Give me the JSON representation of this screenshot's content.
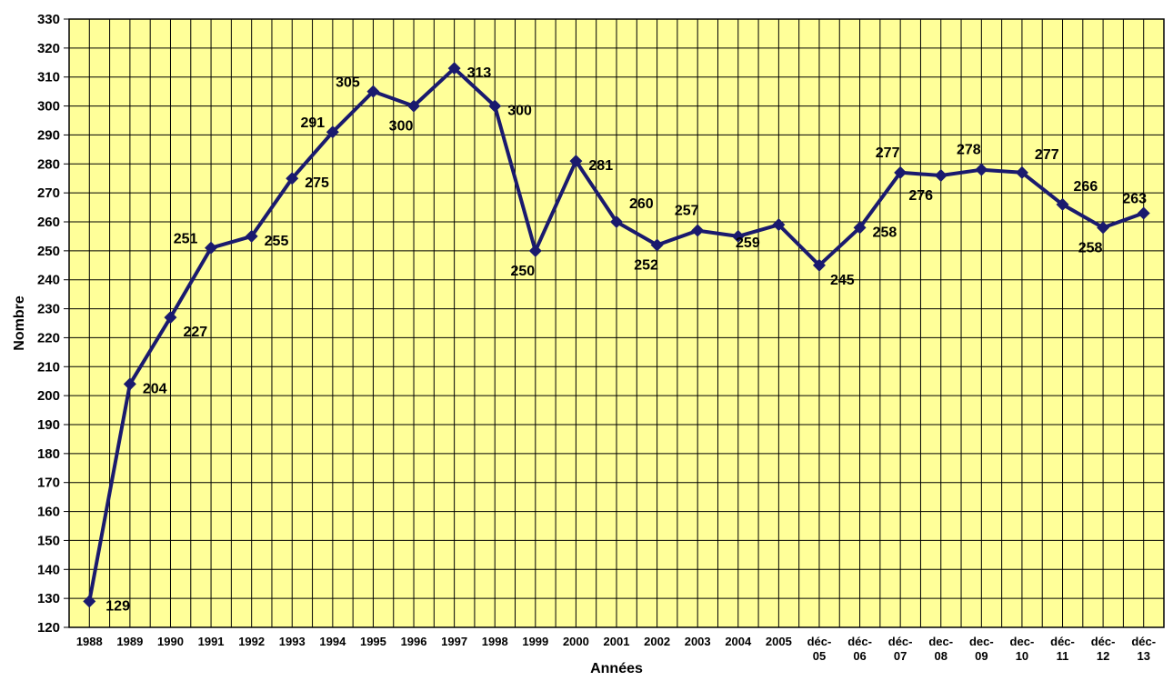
{
  "chart_data": {
    "type": "line",
    "xlabel": "Années",
    "ylabel": "Nombre",
    "ylim": [
      120,
      330
    ],
    "ytick_step": 10,
    "grid": true,
    "plot_background": "#ffff99",
    "line_color": "#1a1a6e",
    "categories": [
      "1988",
      "1989",
      "1990",
      "1991",
      "1992",
      "1993",
      "1994",
      "1995",
      "1996",
      "1997",
      "1998",
      "1999",
      "2000",
      "2001",
      "2002",
      "2003",
      "2004",
      "2005",
      "déc-\n05",
      "déc-\n06",
      "déc-\n07",
      "dec-\n08",
      "dec-\n09",
      "dec-\n10",
      "déc-\n11",
      "déc-\n12",
      "déc-\n13"
    ],
    "series": [
      {
        "values": [
          129,
          204,
          227,
          251,
          255,
          275,
          291,
          305,
          300,
          313,
          300,
          250,
          281,
          260,
          252,
          257,
          255,
          259,
          245,
          258,
          277,
          276,
          278,
          277,
          266,
          258,
          263
        ]
      }
    ],
    "data_labels": [
      "129",
      "204",
      "227",
      "251",
      "255",
      "275",
      "291",
      "305",
      "300",
      "313",
      "300",
      "250",
      "281",
      "260",
      "252",
      "257",
      "255",
      "259",
      "245",
      "258",
      "277",
      "276",
      "278",
      "277",
      "266",
      "258",
      "263"
    ]
  }
}
